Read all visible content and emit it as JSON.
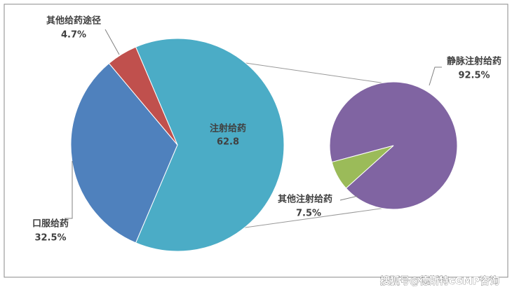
{
  "chart_data": [
    {
      "type": "pie",
      "categories": [
        "注射给药",
        "口服给药",
        "其他给药途径"
      ],
      "values": [
        62.8,
        32.5,
        4.7
      ],
      "value_labels": [
        "62.8",
        "32.5%",
        "4.7%"
      ],
      "colors": [
        "#4bacc6",
        "#4f81bd",
        "#c0504d"
      ]
    },
    {
      "type": "pie",
      "categories": [
        "静脉注射给药",
        "其他注射给药"
      ],
      "values": [
        92.5,
        7.5
      ],
      "value_labels": [
        "92.5%",
        "7.5%"
      ],
      "colors": [
        "#8064a2",
        "#9bbb59"
      ]
    }
  ],
  "watermark": "搜狐号@德斯特cGMP咨询"
}
